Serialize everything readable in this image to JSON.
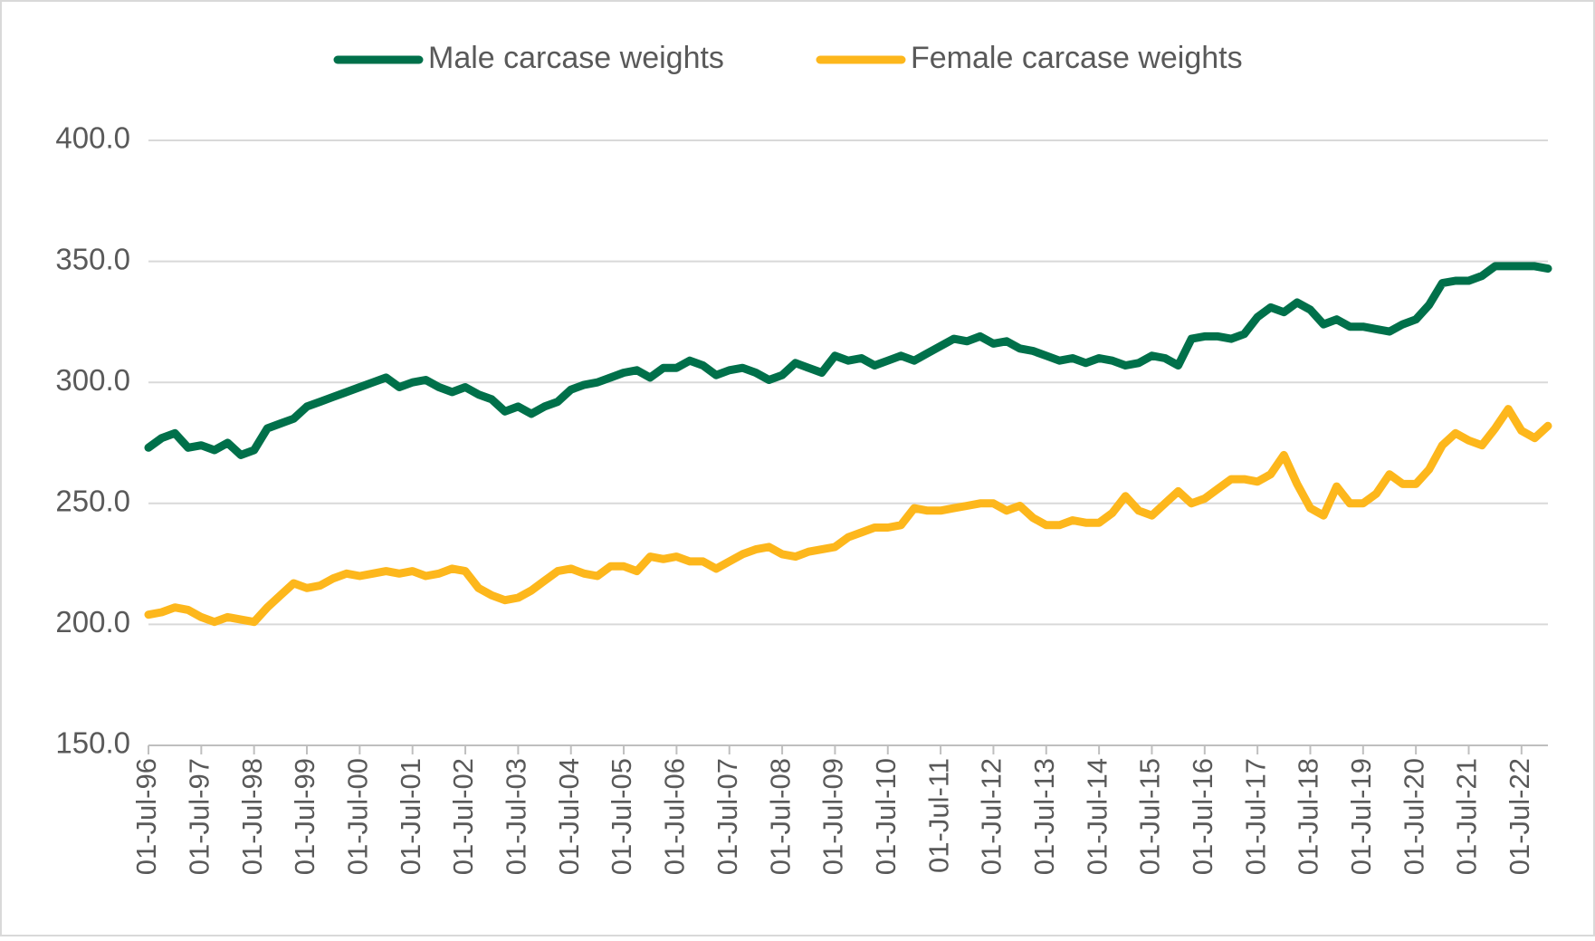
{
  "chart_data": {
    "type": "line",
    "categories": [
      "01-Jul-96",
      null,
      null,
      null,
      "01-Jul-97",
      null,
      null,
      null,
      "01-Jul-98",
      null,
      null,
      null,
      "01-Jul-99",
      null,
      null,
      null,
      "01-Jul-00",
      null,
      null,
      null,
      "01-Jul-01",
      null,
      null,
      null,
      "01-Jul-02",
      null,
      null,
      null,
      "01-Jul-03",
      null,
      null,
      null,
      "01-Jul-04",
      null,
      null,
      null,
      "01-Jul-05",
      null,
      null,
      null,
      "01-Jul-06",
      null,
      null,
      null,
      "01-Jul-07",
      null,
      null,
      null,
      "01-Jul-08",
      null,
      null,
      null,
      "01-Jul-09",
      null,
      null,
      null,
      "01-Jul-10",
      null,
      null,
      null,
      "01-Jul-11",
      null,
      null,
      null,
      "01-Jul-12",
      null,
      null,
      null,
      "01-Jul-13",
      null,
      null,
      null,
      "01-Jul-14",
      null,
      null,
      null,
      "01-Jul-15",
      null,
      null,
      null,
      "01-Jul-16",
      null,
      null,
      null,
      "01-Jul-17",
      null,
      null,
      null,
      "01-Jul-18",
      null,
      null,
      null,
      "01-Jul-19",
      null,
      null,
      null,
      "01-Jul-20",
      null,
      null,
      null,
      "01-Jul-21",
      null,
      null,
      null,
      "01-Jul-22",
      null,
      null
    ],
    "series": [
      {
        "name": "Male carcase weights",
        "color": "#00704a",
        "values": [
          273,
          277,
          279,
          273,
          274,
          272,
          275,
          270,
          272,
          281,
          283,
          285,
          290,
          292,
          294,
          296,
          298,
          300,
          302,
          298,
          300,
          301,
          298,
          296,
          298,
          295,
          293,
          288,
          290,
          287,
          290,
          292,
          297,
          299,
          300,
          302,
          304,
          305,
          302,
          306,
          306,
          309,
          307,
          303,
          305,
          306,
          304,
          301,
          303,
          308,
          306,
          304,
          311,
          309,
          310,
          307,
          309,
          311,
          309,
          312,
          315,
          318,
          317,
          319,
          316,
          317,
          314,
          313,
          311,
          309,
          310,
          308,
          310,
          309,
          307,
          308,
          311,
          310,
          307,
          318,
          319,
          319,
          318,
          320,
          327,
          331,
          329,
          333,
          330,
          324,
          326,
          323,
          323,
          322,
          321,
          324,
          326,
          332,
          341,
          342,
          342,
          344,
          348,
          348,
          348,
          348,
          347
        ]
      },
      {
        "name": "Female carcase weights",
        "color": "#fdb71c",
        "values": [
          204,
          205,
          207,
          206,
          203,
          201,
          203,
          202,
          201,
          207,
          212,
          217,
          215,
          216,
          219,
          221,
          220,
          221,
          222,
          221,
          222,
          220,
          221,
          223,
          222,
          215,
          212,
          210,
          211,
          214,
          218,
          222,
          223,
          221,
          220,
          224,
          224,
          222,
          228,
          227,
          228,
          226,
          226,
          223,
          226,
          229,
          231,
          232,
          229,
          228,
          230,
          231,
          232,
          236,
          238,
          240,
          240,
          241,
          248,
          247,
          247,
          248,
          249,
          250,
          250,
          247,
          249,
          244,
          241,
          241,
          243,
          242,
          242,
          246,
          253,
          247,
          245,
          250,
          255,
          250,
          252,
          256,
          260,
          260,
          259,
          262,
          270,
          258,
          248,
          245,
          257,
          250,
          250,
          254,
          262,
          258,
          258,
          264,
          274,
          279,
          276,
          274,
          281,
          289,
          280,
          277,
          282
        ]
      }
    ],
    "ylim": [
      150,
      400
    ],
    "yticks": [
      {
        "value": 150,
        "label": "150.0"
      },
      {
        "value": 200,
        "label": "200.0"
      },
      {
        "value": 250,
        "label": "250.0"
      },
      {
        "value": 300,
        "label": "300.0"
      },
      {
        "value": 350,
        "label": "350.0"
      },
      {
        "value": 400,
        "label": "400.0"
      }
    ],
    "grid": true,
    "legend": "top"
  }
}
